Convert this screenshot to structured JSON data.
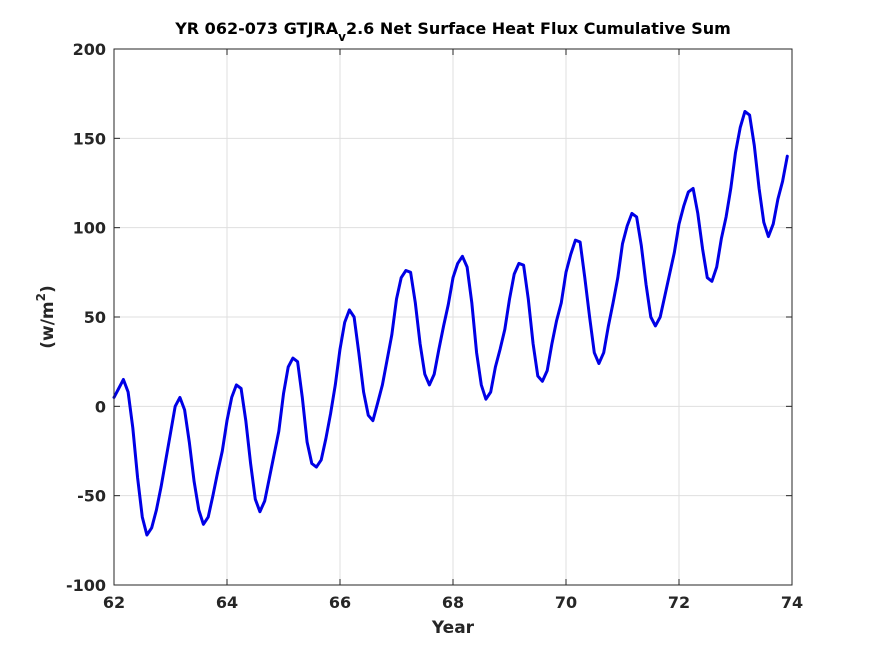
{
  "chart_data": {
    "type": "line",
    "title": {
      "prefix": "YR 062-073 GTJRA",
      "subscript": "v",
      "suffix": "2.6 Net Surface Heat Flux  Cumulative Sum"
    },
    "xlabel": "Year",
    "ylabel": {
      "base": "(w/m",
      "superscript": "2",
      "close": ")"
    },
    "xlim": [
      62,
      74
    ],
    "ylim": [
      -100,
      200
    ],
    "xticks": [
      62,
      64,
      66,
      68,
      70,
      72,
      74
    ],
    "xtick_labels": [
      "62",
      "64",
      "66",
      "68",
      "70",
      "72",
      "74"
    ],
    "yticks": [
      -100,
      -50,
      0,
      50,
      100,
      150,
      200
    ],
    "ytick_labels": [
      "-100",
      "-50",
      "0",
      "50",
      "100",
      "150",
      "200"
    ],
    "grid": true,
    "line_color": "#0000e6",
    "series": [
      {
        "x": [
          62.0,
          62.083,
          62.167,
          62.25,
          62.333,
          62.417,
          62.5,
          62.583,
          62.667,
          62.75,
          62.833,
          62.917,
          63.0,
          63.083,
          63.167,
          63.25,
          63.333,
          63.417,
          63.5,
          63.583,
          63.667,
          63.75,
          63.833,
          63.917,
          64.0,
          64.083,
          64.167,
          64.25,
          64.333,
          64.417,
          64.5,
          64.583,
          64.667,
          64.75,
          64.833,
          64.917,
          65.0,
          65.083,
          65.167,
          65.25,
          65.333,
          65.417,
          65.5,
          65.583,
          65.667,
          65.75,
          65.833,
          65.917,
          66.0,
          66.083,
          66.167,
          66.25,
          66.333,
          66.417,
          66.5,
          66.583,
          66.667,
          66.75,
          66.833,
          66.917,
          67.0,
          67.083,
          67.167,
          67.25,
          67.333,
          67.417,
          67.5,
          67.583,
          67.667,
          67.75,
          67.833,
          67.917,
          68.0,
          68.083,
          68.167,
          68.25,
          68.333,
          68.417,
          68.5,
          68.583,
          68.667,
          68.75,
          68.833,
          68.917,
          69.0,
          69.083,
          69.167,
          69.25,
          69.333,
          69.417,
          69.5,
          69.583,
          69.667,
          69.75,
          69.833,
          69.917,
          70.0,
          70.083,
          70.167,
          70.25,
          70.333,
          70.417,
          70.5,
          70.583,
          70.667,
          70.75,
          70.833,
          70.917,
          71.0,
          71.083,
          71.167,
          71.25,
          71.333,
          71.417,
          71.5,
          71.583,
          71.667,
          71.75,
          71.833,
          71.917,
          72.0,
          72.083,
          72.167,
          72.25,
          72.333,
          72.417,
          72.5,
          72.583,
          72.667,
          72.75,
          72.833,
          72.917,
          73.0,
          73.083,
          73.167,
          73.25,
          73.333,
          73.417,
          73.5,
          73.583,
          73.667,
          73.75,
          73.833,
          73.917
        ],
        "y": [
          5,
          10,
          15,
          8,
          -12,
          -40,
          -62,
          -72,
          -68,
          -58,
          -45,
          -30,
          -15,
          0,
          5,
          -2,
          -20,
          -42,
          -58,
          -66,
          -62,
          -50,
          -37,
          -25,
          -8,
          5,
          12,
          10,
          -8,
          -32,
          -52,
          -59,
          -53,
          -40,
          -27,
          -14,
          7,
          22,
          27,
          25,
          5,
          -20,
          -32,
          -34,
          -30,
          -18,
          -4,
          12,
          32,
          47,
          54,
          50,
          30,
          8,
          -5,
          -8,
          2,
          12,
          26,
          40,
          60,
          72,
          76,
          75,
          58,
          35,
          18,
          12,
          18,
          32,
          45,
          57,
          72,
          80,
          84,
          78,
          58,
          30,
          12,
          4,
          8,
          22,
          32,
          43,
          60,
          74,
          80,
          79,
          60,
          35,
          17,
          14,
          20,
          35,
          48,
          58,
          75,
          85,
          93,
          92,
          72,
          50,
          30,
          24,
          30,
          45,
          58,
          72,
          91,
          101,
          108,
          106,
          90,
          68,
          50,
          45,
          50,
          62,
          74,
          86,
          102,
          112,
          120,
          122,
          108,
          88,
          72,
          70,
          78,
          94,
          106,
          122,
          142,
          156,
          165,
          163,
          146,
          122,
          103,
          95,
          102,
          116,
          126,
          140
        ]
      }
    ]
  }
}
